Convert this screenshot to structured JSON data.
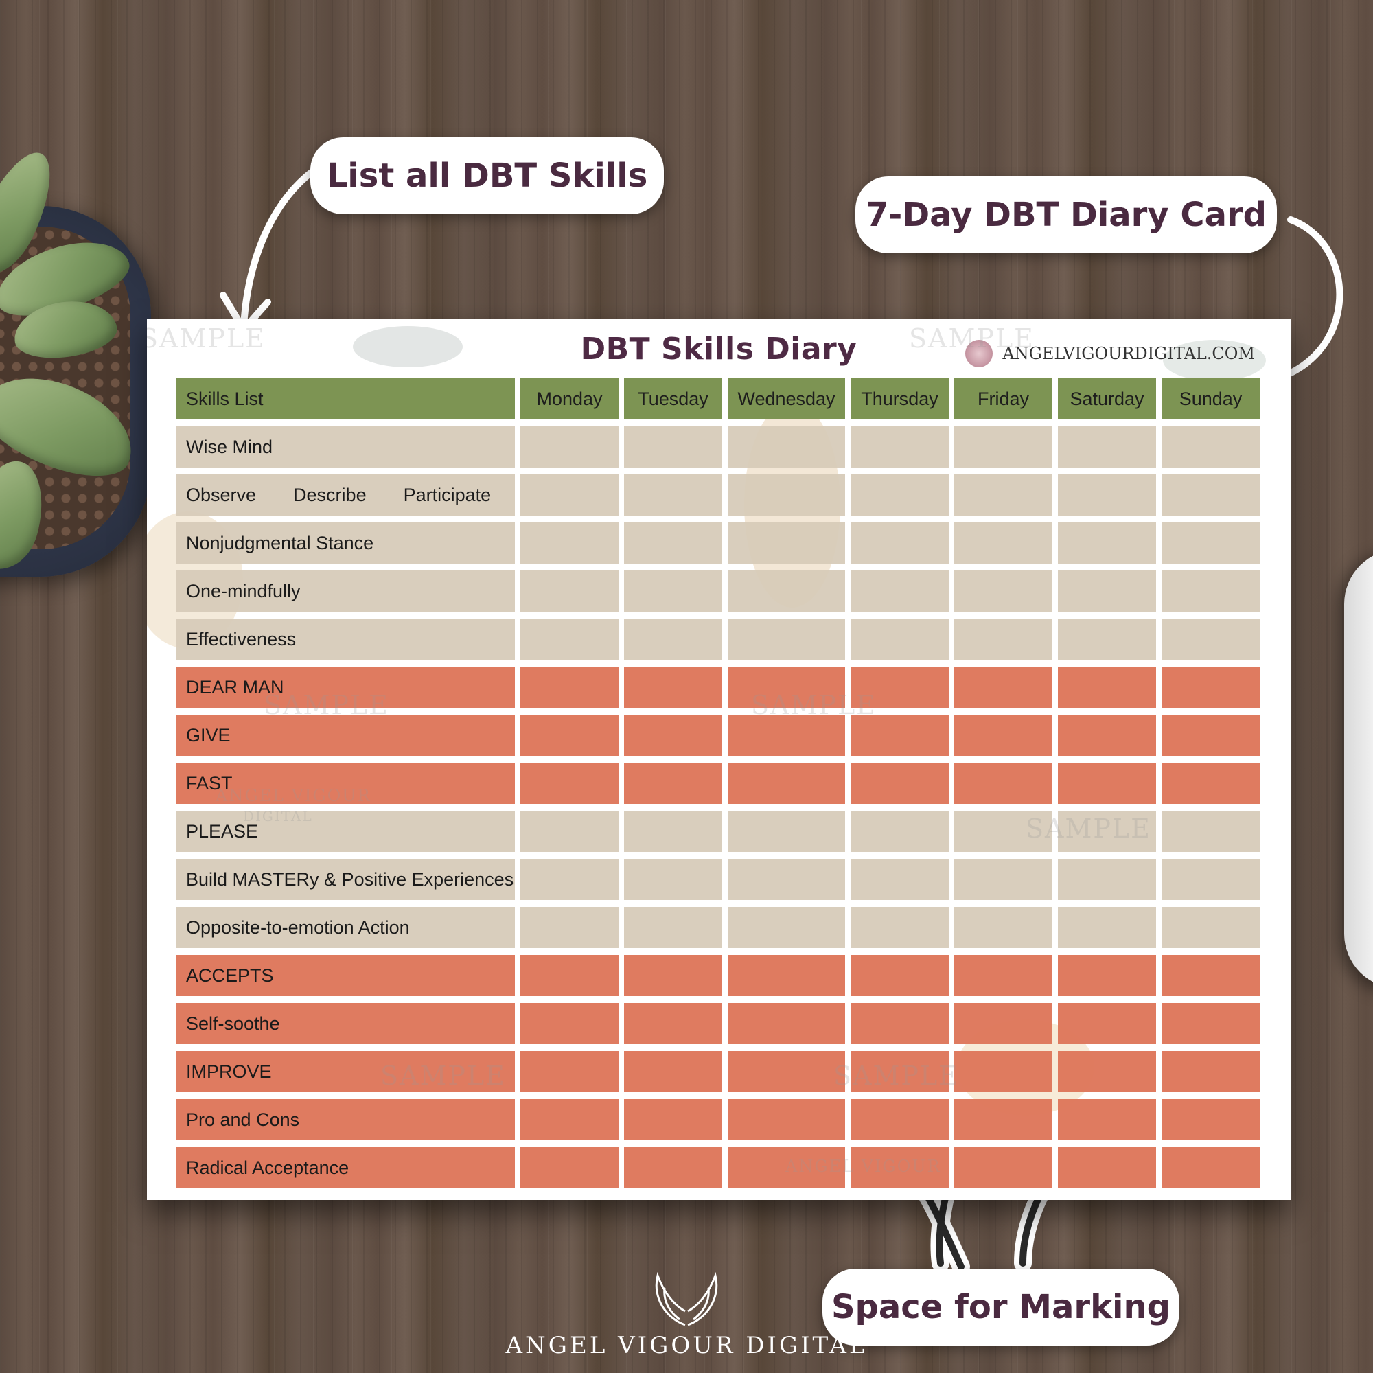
{
  "callouts": {
    "list_skills": "List all DBT Skills",
    "diary_card": "7-Day DBT Diary Card",
    "marking": "Space for Marking"
  },
  "paper": {
    "title": "DBT Skills Diary",
    "website": "ANGELVIGOURDIGITAL.COM",
    "watermark_text": "SAMPLE",
    "watermark_brand": "ANGEL VIGOUR",
    "watermark_sub": "DIGITAL"
  },
  "table": {
    "header_label": "Skills List",
    "days": [
      "Monday",
      "Tuesday",
      "Wednesday",
      "Thursday",
      "Friday",
      "Saturday",
      "Sunday"
    ],
    "rows": [
      {
        "label": "Wise Mind",
        "tone": "sand"
      },
      {
        "label": "Observe",
        "extra": [
          "Describe",
          "Participate"
        ],
        "tone": "sand"
      },
      {
        "label": "Nonjudgmental Stance",
        "tone": "sand"
      },
      {
        "label": "One-mindfully",
        "tone": "sand"
      },
      {
        "label": "Effectiveness",
        "tone": "sand"
      },
      {
        "label": "DEAR MAN",
        "tone": "coral"
      },
      {
        "label": "GIVE",
        "tone": "coral"
      },
      {
        "label": "FAST",
        "tone": "coral"
      },
      {
        "label": "PLEASE",
        "tone": "sand"
      },
      {
        "label": "Build MASTERy & Positive Experiences",
        "tone": "sand"
      },
      {
        "label": "Opposite-to-emotion Action",
        "tone": "sand"
      },
      {
        "label": "ACCEPTS",
        "tone": "coral"
      },
      {
        "label": "Self-soothe",
        "tone": "coral"
      },
      {
        "label": "IMPROVE",
        "tone": "coral"
      },
      {
        "label": "Pro and Cons",
        "tone": "coral"
      },
      {
        "label": "Radical Acceptance",
        "tone": "coral"
      }
    ]
  },
  "footer": {
    "brand": "ANGEL VIGOUR DIGITAL"
  },
  "colors": {
    "header_green": "#7d9453",
    "sand": "#d6cab8",
    "coral": "#de765a",
    "title_plum": "#4e2a44"
  }
}
